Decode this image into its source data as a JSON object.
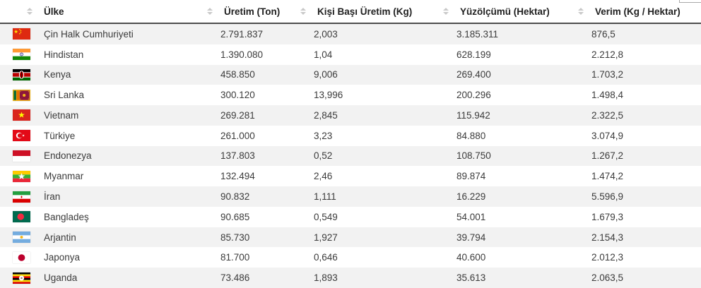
{
  "colors": {
    "stripe": "#f2f2f2",
    "header_border": "#4d4d4d",
    "header_text": "#212121",
    "cell_text": "#3b3b3b",
    "sort_icon": "#c9c9c9"
  },
  "table": {
    "columns": [
      {
        "id": "country",
        "label": "Ülke",
        "sortable": true
      },
      {
        "id": "uretim",
        "label": "Üretim (Ton)",
        "sortable": true
      },
      {
        "id": "kisi_basi",
        "label": "Kişi Başı Üretim (Kg)",
        "sortable": true
      },
      {
        "id": "yuzolcumu",
        "label": "Yüzölçümü (Hektar)",
        "sortable": true
      },
      {
        "id": "verim",
        "label": "Verim (Kg / Hektar)",
        "sortable": true
      }
    ],
    "rows": [
      {
        "flag": "china",
        "country": "Çin Halk Cumhuriyeti",
        "uretim": "2.791.837",
        "kisi_basi": "2,003",
        "yuzolcumu": "3.185.311",
        "verim": "876,5"
      },
      {
        "flag": "india",
        "country": "Hindistan",
        "uretim": "1.390.080",
        "kisi_basi": "1,04",
        "yuzolcumu": "628.199",
        "verim": "2.212,8"
      },
      {
        "flag": "kenya",
        "country": "Kenya",
        "uretim": "458.850",
        "kisi_basi": "9,006",
        "yuzolcumu": "269.400",
        "verim": "1.703,2"
      },
      {
        "flag": "srilanka",
        "country": "Sri Lanka",
        "uretim": "300.120",
        "kisi_basi": "13,996",
        "yuzolcumu": "200.296",
        "verim": "1.498,4"
      },
      {
        "flag": "vietnam",
        "country": "Vietnam",
        "uretim": "269.281",
        "kisi_basi": "2,845",
        "yuzolcumu": "115.942",
        "verim": "2.322,5"
      },
      {
        "flag": "turkiye",
        "country": "Türkiye",
        "uretim": "261.000",
        "kisi_basi": "3,23",
        "yuzolcumu": "84.880",
        "verim": "3.074,9"
      },
      {
        "flag": "indonesia",
        "country": "Endonezya",
        "uretim": "137.803",
        "kisi_basi": "0,52",
        "yuzolcumu": "108.750",
        "verim": "1.267,2"
      },
      {
        "flag": "myanmar",
        "country": "Myanmar",
        "uretim": "132.494",
        "kisi_basi": "2,46",
        "yuzolcumu": "89.874",
        "verim": "1.474,2"
      },
      {
        "flag": "iran",
        "country": "İran",
        "uretim": "90.832",
        "kisi_basi": "1,111",
        "yuzolcumu": "16.229",
        "verim": "5.596,9"
      },
      {
        "flag": "bangladesh",
        "country": "Bangladeş",
        "uretim": "90.685",
        "kisi_basi": "0,549",
        "yuzolcumu": "54.001",
        "verim": "1.679,3"
      },
      {
        "flag": "argentina",
        "country": "Arjantin",
        "uretim": "85.730",
        "kisi_basi": "1,927",
        "yuzolcumu": "39.794",
        "verim": "2.154,3"
      },
      {
        "flag": "japan",
        "country": "Japonya",
        "uretim": "81.700",
        "kisi_basi": "0,646",
        "yuzolcumu": "40.600",
        "verim": "2.012,3"
      },
      {
        "flag": "uganda",
        "country": "Uganda",
        "uretim": "73.486",
        "kisi_basi": "1,893",
        "yuzolcumu": "35.613",
        "verim": "2.063,5"
      }
    ]
  }
}
